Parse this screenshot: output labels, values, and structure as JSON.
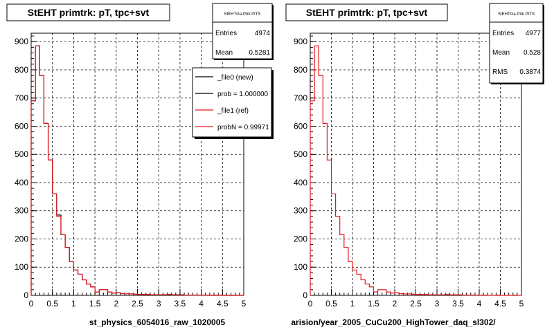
{
  "chart_data": [
    {
      "type": "histogram",
      "title": "StEHT primtrk: pT, tpc+svt",
      "xlabel": "st_physics_6054016_raw_1020005",
      "xlim": [
        0,
        5
      ],
      "ylim": [
        0,
        930
      ],
      "x_ticks": [
        "0",
        "0.5",
        "1",
        "1.5",
        "2",
        "2.5",
        "3",
        "3.5",
        "4",
        "4.5",
        "5"
      ],
      "y_ticks": [
        "0",
        "100",
        "200",
        "300",
        "400",
        "500",
        "600",
        "700",
        "800",
        "900"
      ],
      "grid": true,
      "stats": {
        "title": "StEHTGa Ptrk PtTS",
        "entries_label": "Entries",
        "entries": "4974",
        "mean_label": "Mean",
        "mean": "0.5281"
      },
      "legend": {
        "position": "top-right",
        "entries": [
          {
            "label": "_file0 (new)",
            "color": "#000000"
          },
          {
            "label": "prob = 1.000000",
            "color": "#000000"
          },
          {
            "label": "_file1 (ref)",
            "color": "#e8141b"
          },
          {
            "label": "probN = 0.99971",
            "color": "#e8141b"
          }
        ]
      },
      "bin_width": 0.1,
      "series": [
        {
          "name": "_file0 (new)",
          "color": "#000000",
          "values": [
            690,
            885,
            780,
            610,
            480,
            360,
            285,
            215,
            170,
            120,
            90,
            75,
            55,
            40,
            30,
            12,
            20,
            20,
            12,
            8,
            10,
            6,
            5,
            5,
            4,
            3,
            3,
            3,
            2,
            2,
            2,
            2,
            3,
            2,
            2,
            2,
            1,
            1,
            1,
            1,
            1,
            1,
            0,
            0,
            1,
            0,
            0,
            0,
            1,
            0
          ]
        },
        {
          "name": "_file1 (ref)",
          "color": "#e8141b",
          "values": [
            690,
            885,
            780,
            610,
            480,
            360,
            280,
            215,
            170,
            120,
            90,
            75,
            55,
            40,
            30,
            12,
            20,
            20,
            12,
            8,
            10,
            6,
            5,
            5,
            4,
            3,
            3,
            3,
            2,
            2,
            2,
            2,
            3,
            2,
            2,
            2,
            1,
            1,
            1,
            1,
            1,
            1,
            0,
            0,
            1,
            0,
            0,
            0,
            1,
            0
          ]
        }
      ]
    },
    {
      "type": "histogram",
      "title": "StEHT primtrk: pT, tpc+svt",
      "xlabel": "arision/year_2005_CuCu200_HighTower_daq_sl302/",
      "xlim": [
        0,
        5
      ],
      "ylim": [
        0,
        930
      ],
      "x_ticks": [
        "0",
        "0.5",
        "1",
        "1.5",
        "2",
        "2.5",
        "3",
        "3.5",
        "4",
        "4.5",
        "5"
      ],
      "y_ticks": [
        "0",
        "100",
        "200",
        "300",
        "400",
        "500",
        "600",
        "700",
        "800",
        "900"
      ],
      "grid": true,
      "stats": {
        "title": "StEHTGa Ptrk PtTS",
        "entries_label": "Entries",
        "entries": "4977",
        "mean_label": "Mean",
        "mean": "0.528",
        "rms_label": "RMS",
        "rms": "0.3874"
      },
      "bin_width": 0.1,
      "series": [
        {
          "color": "#e8141b",
          "values": [
            690,
            885,
            780,
            610,
            480,
            360,
            280,
            215,
            170,
            120,
            90,
            75,
            55,
            40,
            30,
            12,
            20,
            20,
            12,
            8,
            10,
            6,
            5,
            5,
            4,
            3,
            3,
            3,
            2,
            2,
            2,
            2,
            3,
            2,
            2,
            2,
            1,
            1,
            1,
            1,
            1,
            1,
            0,
            0,
            1,
            0,
            0,
            0,
            1,
            0
          ]
        }
      ]
    }
  ]
}
